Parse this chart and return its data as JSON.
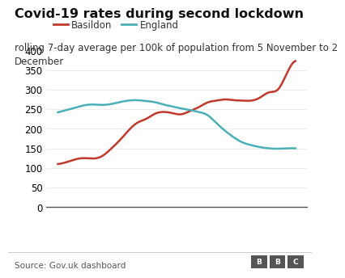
{
  "title": "Covid-19 rates during second lockdown",
  "subtitle": "rolling 7-day average per 100k of population from 5 November to 2\nDecember",
  "source": "Source: Gov.uk dashboard",
  "basildon_color": "#c0392b",
  "england_color": "#4ab0b8",
  "background_color": "#ffffff",
  "ylim": [
    0,
    410
  ],
  "yticks": [
    0,
    50,
    100,
    150,
    200,
    250,
    300,
    350,
    400
  ],
  "basildon_x": [
    0,
    1,
    2,
    3,
    4,
    5,
    6,
    7,
    8,
    9,
    10,
    11,
    12,
    13,
    14,
    15,
    16,
    17,
    18,
    19,
    20,
    21,
    22,
    23,
    24,
    25,
    26,
    27
  ],
  "basildon_y": [
    110,
    115,
    122,
    125,
    124,
    130,
    148,
    170,
    195,
    215,
    225,
    238,
    243,
    240,
    237,
    245,
    255,
    267,
    272,
    275,
    273,
    272,
    272,
    280,
    293,
    300,
    340,
    373
  ],
  "england_x": [
    0,
    1,
    2,
    3,
    4,
    5,
    6,
    7,
    8,
    9,
    10,
    11,
    12,
    13,
    14,
    15,
    16,
    17,
    18,
    19,
    20,
    21,
    22,
    23,
    24,
    25,
    26,
    27
  ],
  "england_y": [
    242,
    248,
    254,
    260,
    262,
    261,
    263,
    268,
    272,
    273,
    271,
    268,
    262,
    257,
    252,
    248,
    243,
    235,
    215,
    195,
    178,
    165,
    158,
    153,
    150,
    149,
    150,
    150
  ],
  "line_width": 1.8,
  "title_fontsize": 11.5,
  "subtitle_fontsize": 8.5,
  "tick_fontsize": 8.5,
  "legend_fontsize": 8.5,
  "source_fontsize": 7.5,
  "bbc_fontsize": 6.5
}
